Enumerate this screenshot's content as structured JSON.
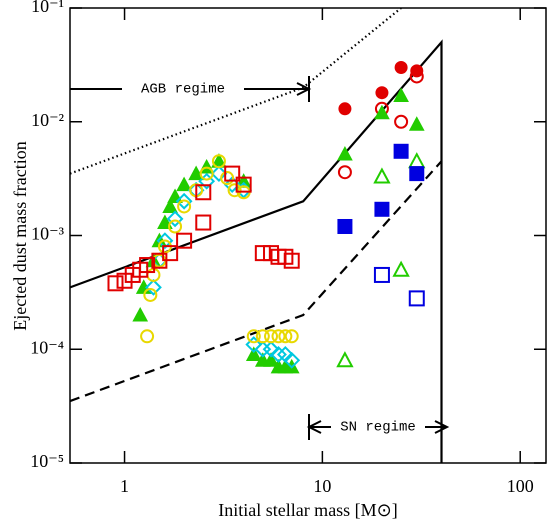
{
  "chart_data": {
    "type": "scatter",
    "xlabel": "Initial stellar mass [M⊙]",
    "ylabel": "Ejected dust mass fraction",
    "log_x": true,
    "log_y": true,
    "xlim": [
      0.53,
      135
    ],
    "ylim": [
      1e-05,
      0.1
    ],
    "xticks": [
      1,
      10,
      100
    ],
    "yticks": [
      {
        "value": 1e-05,
        "label": "10⁻⁵"
      },
      {
        "value": 0.0001,
        "label": "10⁻⁴"
      },
      {
        "value": 0.001,
        "label": "10⁻³"
      },
      {
        "value": 0.01,
        "label": "10⁻²"
      },
      {
        "value": 0.1,
        "label": "10⁻¹"
      }
    ],
    "annotations": [
      "AGB regime",
      "SN regime"
    ],
    "lines": [
      {
        "style": "solid",
        "color": "#000000",
        "x": [
          0.53,
          8,
          40,
          40
        ],
        "values": [
          0.00035,
          0.002,
          0.05,
          1e-05
        ]
      },
      {
        "style": "dashed",
        "color": "#000000",
        "x": [
          0.53,
          8,
          40
        ],
        "values": [
          3.5e-05,
          0.0002,
          0.0045
        ]
      },
      {
        "style": "dotted",
        "color": "#000000",
        "x": [
          0.53,
          8,
          25
        ],
        "values": [
          0.0035,
          0.02,
          0.1
        ]
      }
    ],
    "series": [
      {
        "marker": "triangle",
        "filled": true,
        "color": "#22cc00",
        "x": [
          1.2,
          1.25,
          1.4,
          1.5,
          1.6,
          1.7,
          1.8,
          2,
          2.3,
          2.6,
          3,
          4,
          4.5,
          5,
          5.5,
          6,
          6.5,
          7
        ],
        "values": [
          0.0002,
          0.00035,
          0.0006,
          0.0009,
          0.0013,
          0.0018,
          0.0022,
          0.0028,
          0.0035,
          0.004,
          0.0045,
          0.003,
          9e-05,
          8e-05,
          8e-05,
          7e-05,
          7e-05,
          7e-05
        ]
      },
      {
        "marker": "diamond",
        "filled": false,
        "color": "#00c8e0",
        "x": [
          1.4,
          1.5,
          1.6,
          1.8,
          2,
          2.3,
          2.6,
          3,
          3.5,
          4,
          4.5,
          5,
          5.5,
          6,
          6.5,
          7
        ],
        "values": [
          0.00035,
          0.0006,
          0.0009,
          0.0014,
          0.002,
          0.0025,
          0.003,
          0.0035,
          0.0028,
          0.0025,
          0.00011,
          0.0001,
          0.0001,
          9e-05,
          9e-05,
          8e-05
        ]
      },
      {
        "marker": "circle",
        "filled": false,
        "color": "#e8d800",
        "x": [
          1.3,
          1.35,
          1.4,
          1.5,
          1.6,
          1.8,
          2,
          2.3,
          2.6,
          3,
          3.3,
          3.6,
          4,
          4.5,
          5,
          5.5,
          6,
          6.5,
          7
        ],
        "values": [
          0.00013,
          0.0003,
          0.00045,
          0.0006,
          0.0008,
          0.0012,
          0.0018,
          0.0025,
          0.0035,
          0.0045,
          0.0032,
          0.0025,
          0.0024,
          0.00013,
          0.00013,
          0.00013,
          0.00013,
          0.00013,
          0.00013
        ]
      },
      {
        "marker": "square",
        "filled": false,
        "color": "#e00000",
        "x": [
          0.9,
          1,
          1.1,
          1.2,
          1.3,
          1.5,
          1.7,
          2,
          2.5,
          2.5,
          3.5,
          4,
          5,
          5.5,
          6,
          6.5,
          7
        ],
        "values": [
          0.00038,
          0.0004,
          0.00045,
          0.0005,
          0.00055,
          0.0006,
          0.0007,
          0.0009,
          0.0013,
          0.0024,
          0.0035,
          0.0028,
          0.0007,
          0.0007,
          0.00065,
          0.00065,
          0.0006
        ]
      },
      {
        "marker": "circle",
        "filled": true,
        "color": "#e00000",
        "x": [
          13,
          20,
          25,
          30
        ],
        "values": [
          0.013,
          0.018,
          0.03,
          0.028
        ]
      },
      {
        "marker": "circle",
        "filled": false,
        "color": "#e00000",
        "x": [
          13,
          20,
          25,
          30
        ],
        "values": [
          0.0036,
          0.013,
          0.01,
          0.025
        ]
      },
      {
        "marker": "triangle",
        "filled": true,
        "color": "#22cc00",
        "x": [
          13,
          20,
          25,
          30
        ],
        "values": [
          0.0052,
          0.012,
          0.017,
          0.0095
        ]
      },
      {
        "marker": "triangle",
        "filled": false,
        "color": "#22cc00",
        "x": [
          13,
          20,
          25,
          30
        ],
        "values": [
          8e-05,
          0.0033,
          0.0005,
          0.0045
        ]
      },
      {
        "marker": "square",
        "filled": true,
        "color": "#0000e0",
        "x": [
          13,
          20,
          25,
          30
        ],
        "values": [
          0.0012,
          0.0017,
          0.0055,
          0.0035
        ]
      },
      {
        "marker": "square",
        "filled": false,
        "color": "#0000e0",
        "x": [
          20,
          30
        ],
        "values": [
          0.00045,
          0.00028
        ]
      }
    ]
  }
}
